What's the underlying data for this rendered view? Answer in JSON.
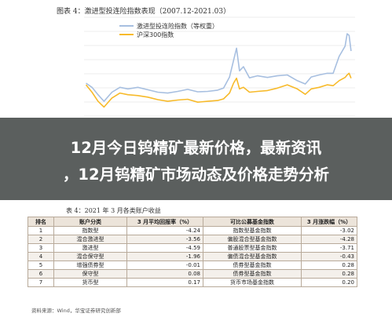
{
  "figure_caption": "图表 4：激进型投连险指数表现（2007.12-2021.03）",
  "banner": {
    "line1": "12月今日钨精矿最新价格，最新资讯",
    "line2": "，12月钨精矿市场动态及价格走势分析"
  },
  "table": {
    "caption": "表 4：2021 年 3 月各类账户收益",
    "headers": [
      "排名",
      "账户分类",
      "3 月平均回报率（%）",
      "可比公募基金指数",
      "3 月涨跌幅（%）"
    ],
    "rows": [
      [
        "1",
        "指数型",
        "-4.24",
        "指数型基金指数",
        "-3.02"
      ],
      [
        "2",
        "混合激进型",
        "-3.56",
        "偏股混合型基金指数",
        "-4.28"
      ],
      [
        "3",
        "激进型",
        "-4.59",
        "普通股票型基金指数",
        "-3.71"
      ],
      [
        "4",
        "混合保守型",
        "-1.96",
        "偏债混合型基金指数",
        "-0.43"
      ],
      [
        "5",
        "增强债券型",
        "-0.01",
        "债券型基金指数",
        "0.28"
      ],
      [
        "6",
        "保守型",
        "0.08",
        "债券型基金指数",
        "0.28"
      ],
      [
        "7",
        "货币型",
        "0.17",
        "货币市场基金指数",
        "0.20"
      ]
    ]
  },
  "source": "资料来源：Wind，华宝证券研究创新部",
  "colors": {
    "series1": "#a7bfe0",
    "series2": "#f7ba2a",
    "grid": "#e8e8e8"
  },
  "chart_data": {
    "type": "line",
    "title": "",
    "xlabel": "",
    "ylabel": "",
    "legend_position": "top",
    "grid": true,
    "x": [
      2007.9,
      2008.2,
      2008.5,
      2008.8,
      2009.2,
      2009.6,
      2010.0,
      2010.5,
      2011.0,
      2011.5,
      2012.0,
      2012.5,
      2013.0,
      2013.5,
      2014.0,
      2014.5,
      2014.8,
      2015.1,
      2015.3,
      2015.45,
      2015.6,
      2015.8,
      2016.1,
      2016.5,
      2017.0,
      2017.5,
      2018.0,
      2018.5,
      2018.9,
      2019.2,
      2019.6,
      2020.0,
      2020.3,
      2020.6,
      2020.9,
      2021.0,
      2021.1,
      2021.2
    ],
    "series": [
      {
        "name": "激进型投连险指数（等权重）",
        "values": [
          1000,
          900,
          720,
          560,
          780,
          900,
          860,
          900,
          840,
          780,
          760,
          800,
          850,
          790,
          800,
          830,
          880,
          1150,
          1550,
          1850,
          1300,
          1400,
          1130,
          1180,
          1140,
          1180,
          1200,
          1060,
          980,
          1150,
          1200,
          1240,
          1240,
          1650,
          1900,
          2200,
          2160,
          1780
        ]
      },
      {
        "name": "沪深300指数",
        "values": [
          960,
          780,
          560,
          420,
          640,
          760,
          720,
          700,
          660,
          600,
          560,
          590,
          610,
          540,
          560,
          580,
          620,
          760,
          1000,
          1120,
          860,
          900,
          780,
          800,
          820,
          880,
          960,
          860,
          730,
          860,
          900,
          960,
          940,
          1060,
          1140,
          1200,
          1240,
          1120
        ]
      }
    ],
    "ylim": [
      200,
      2600
    ],
    "xlim": [
      2007.8,
      2021.4
    ]
  }
}
